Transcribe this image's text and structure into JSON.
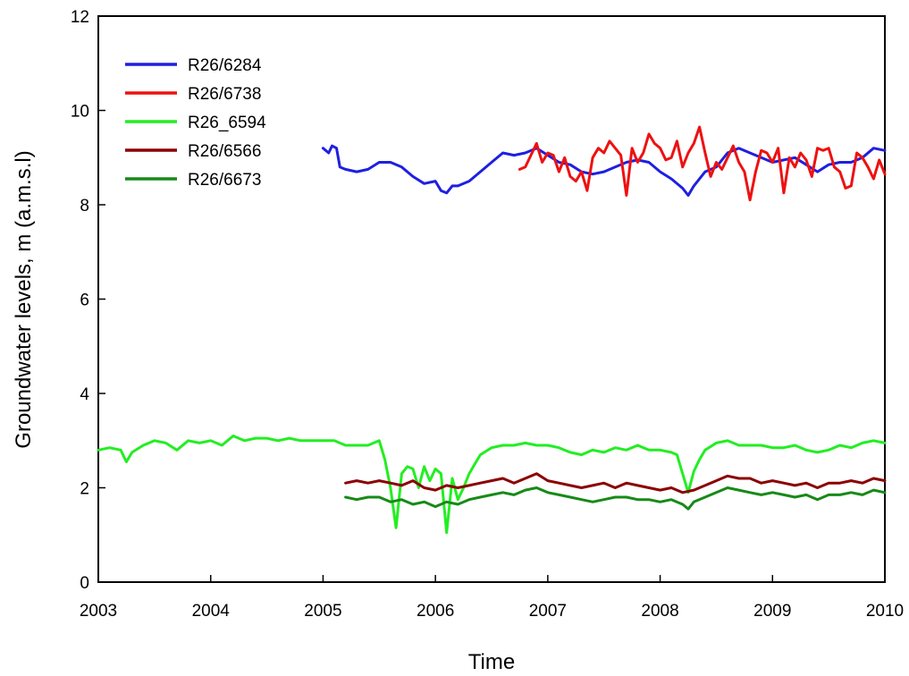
{
  "chart_data": {
    "type": "line",
    "title": "",
    "xlabel": "Time",
    "ylabel": "Groundwater levels, m (a.m.s.l)",
    "xlim": [
      2003,
      2010
    ],
    "ylim": [
      0,
      12
    ],
    "xticks": [
      2003,
      2004,
      2005,
      2006,
      2007,
      2008,
      2009,
      2010
    ],
    "xtick_labels": [
      "2003",
      "2004",
      "2005",
      "2006",
      "2007",
      "2008",
      "2009",
      "2010"
    ],
    "yticks": [
      0,
      2,
      4,
      6,
      8,
      10,
      12
    ],
    "ytick_labels": [
      "0",
      "2",
      "4",
      "6",
      "8",
      "10",
      "12"
    ],
    "grid": false,
    "legend_position": "top-left",
    "series": [
      {
        "name": "R26/6284",
        "color": "#1f1fe0",
        "x": [
          2005.0,
          2005.05,
          2005.08,
          2005.12,
          2005.15,
          2005.2,
          2005.3,
          2005.4,
          2005.5,
          2005.6,
          2005.7,
          2005.8,
          2005.9,
          2006.0,
          2006.05,
          2006.1,
          2006.15,
          2006.2,
          2006.3,
          2006.4,
          2006.5,
          2006.6,
          2006.7,
          2006.8,
          2006.9,
          2007.0,
          2007.1,
          2007.2,
          2007.3,
          2007.4,
          2007.5,
          2007.6,
          2007.7,
          2007.8,
          2007.9,
          2008.0,
          2008.1,
          2008.2,
          2008.25,
          2008.3,
          2008.4,
          2008.5,
          2008.6,
          2008.7,
          2008.8,
          2008.9,
          2009.0,
          2009.1,
          2009.2,
          2009.3,
          2009.4,
          2009.5,
          2009.6,
          2009.7,
          2009.8,
          2009.9,
          2010.0
        ],
        "y": [
          9.2,
          9.1,
          9.25,
          9.2,
          8.8,
          8.75,
          8.7,
          8.75,
          8.9,
          8.9,
          8.8,
          8.6,
          8.45,
          8.5,
          8.3,
          8.25,
          8.4,
          8.4,
          8.5,
          8.7,
          8.9,
          9.1,
          9.05,
          9.1,
          9.2,
          9.05,
          8.9,
          8.85,
          8.7,
          8.65,
          8.7,
          8.8,
          8.9,
          8.95,
          8.9,
          8.7,
          8.55,
          8.35,
          8.2,
          8.4,
          8.7,
          8.8,
          9.1,
          9.2,
          9.1,
          9.0,
          8.9,
          8.95,
          9.0,
          8.85,
          8.7,
          8.85,
          8.9,
          8.9,
          9.0,
          9.2,
          9.15
        ]
      },
      {
        "name": "R26/6738",
        "color": "#ee1111",
        "x": [
          2006.75,
          2006.8,
          2006.85,
          2006.9,
          2006.95,
          2007.0,
          2007.05,
          2007.1,
          2007.15,
          2007.2,
          2007.25,
          2007.3,
          2007.35,
          2007.4,
          2007.45,
          2007.5,
          2007.55,
          2007.6,
          2007.65,
          2007.7,
          2007.75,
          2007.8,
          2007.85,
          2007.9,
          2007.95,
          2008.0,
          2008.05,
          2008.1,
          2008.15,
          2008.2,
          2008.25,
          2008.3,
          2008.35,
          2008.4,
          2008.45,
          2008.5,
          2008.55,
          2008.6,
          2008.65,
          2008.7,
          2008.75,
          2008.8,
          2008.85,
          2008.9,
          2008.95,
          2009.0,
          2009.05,
          2009.1,
          2009.15,
          2009.2,
          2009.25,
          2009.3,
          2009.35,
          2009.4,
          2009.45,
          2009.5,
          2009.55,
          2009.6,
          2009.65,
          2009.7,
          2009.75,
          2009.8,
          2009.85,
          2009.9,
          2009.95,
          2010.0
        ],
        "y": [
          8.75,
          8.8,
          9.05,
          9.3,
          8.9,
          9.1,
          9.05,
          8.7,
          9.0,
          8.6,
          8.5,
          8.7,
          8.3,
          9.0,
          9.2,
          9.1,
          9.35,
          9.2,
          9.05,
          8.2,
          9.2,
          8.9,
          9.1,
          9.5,
          9.3,
          9.2,
          8.95,
          9.0,
          9.35,
          8.8,
          9.1,
          9.3,
          9.65,
          9.1,
          8.6,
          8.9,
          8.75,
          9.0,
          9.25,
          8.9,
          8.7,
          8.1,
          8.7,
          9.15,
          9.1,
          8.9,
          9.2,
          8.25,
          9.0,
          8.8,
          9.1,
          8.95,
          8.6,
          9.2,
          9.15,
          9.2,
          8.8,
          8.7,
          8.35,
          8.4,
          9.1,
          9.0,
          8.8,
          8.55,
          8.95,
          8.65
        ]
      },
      {
        "name": "R26_6594",
        "color": "#22ee22",
        "x": [
          2003.0,
          2003.1,
          2003.2,
          2003.25,
          2003.3,
          2003.4,
          2003.5,
          2003.6,
          2003.7,
          2003.8,
          2003.9,
          2004.0,
          2004.1,
          2004.2,
          2004.3,
          2004.4,
          2004.5,
          2004.6,
          2004.7,
          2004.8,
          2004.9,
          2005.0,
          2005.1,
          2005.2,
          2005.3,
          2005.4,
          2005.5,
          2005.55,
          2005.6,
          2005.65,
          2005.7,
          2005.75,
          2005.8,
          2005.85,
          2005.9,
          2005.95,
          2006.0,
          2006.05,
          2006.1,
          2006.15,
          2006.2,
          2006.25,
          2006.3,
          2006.35,
          2006.4,
          2006.5,
          2006.6,
          2006.7,
          2006.8,
          2006.9,
          2007.0,
          2007.1,
          2007.2,
          2007.3,
          2007.4,
          2007.5,
          2007.6,
          2007.7,
          2007.8,
          2007.9,
          2008.0,
          2008.1,
          2008.15,
          2008.2,
          2008.25,
          2008.3,
          2008.35,
          2008.4,
          2008.5,
          2008.6,
          2008.7,
          2008.8,
          2008.9,
          2009.0,
          2009.1,
          2009.2,
          2009.3,
          2009.4,
          2009.5,
          2009.6,
          2009.7,
          2009.8,
          2009.9,
          2010.0
        ],
        "y": [
          2.8,
          2.85,
          2.8,
          2.55,
          2.75,
          2.9,
          3.0,
          2.95,
          2.8,
          3.0,
          2.95,
          3.0,
          2.9,
          3.1,
          3.0,
          3.05,
          3.05,
          3.0,
          3.05,
          3.0,
          3.0,
          3.0,
          3.0,
          2.9,
          2.9,
          2.9,
          3.0,
          2.6,
          2.0,
          1.15,
          2.3,
          2.45,
          2.4,
          2.0,
          2.45,
          2.15,
          2.4,
          2.3,
          1.05,
          2.2,
          1.75,
          2.0,
          2.3,
          2.5,
          2.7,
          2.85,
          2.9,
          2.9,
          2.95,
          2.9,
          2.9,
          2.85,
          2.75,
          2.7,
          2.8,
          2.75,
          2.85,
          2.8,
          2.9,
          2.8,
          2.8,
          2.75,
          2.7,
          2.3,
          1.9,
          2.35,
          2.6,
          2.8,
          2.95,
          3.0,
          2.9,
          2.9,
          2.9,
          2.85,
          2.85,
          2.9,
          2.8,
          2.75,
          2.8,
          2.9,
          2.85,
          2.95,
          3.0,
          2.95
        ]
      },
      {
        "name": "R26/6566",
        "color": "#8b0000",
        "x": [
          2005.2,
          2005.3,
          2005.4,
          2005.5,
          2005.6,
          2005.7,
          2005.8,
          2005.9,
          2006.0,
          2006.1,
          2006.2,
          2006.3,
          2006.4,
          2006.5,
          2006.6,
          2006.7,
          2006.8,
          2006.9,
          2007.0,
          2007.1,
          2007.2,
          2007.3,
          2007.4,
          2007.5,
          2007.6,
          2007.7,
          2007.8,
          2007.9,
          2008.0,
          2008.1,
          2008.2,
          2008.3,
          2008.4,
          2008.5,
          2008.6,
          2008.7,
          2008.8,
          2008.9,
          2009.0,
          2009.1,
          2009.2,
          2009.3,
          2009.4,
          2009.5,
          2009.6,
          2009.7,
          2009.8,
          2009.9,
          2010.0
        ],
        "y": [
          2.1,
          2.15,
          2.1,
          2.15,
          2.1,
          2.05,
          2.15,
          2.0,
          1.95,
          2.05,
          2.0,
          2.05,
          2.1,
          2.15,
          2.2,
          2.1,
          2.2,
          2.3,
          2.15,
          2.1,
          2.05,
          2.0,
          2.05,
          2.1,
          2.0,
          2.1,
          2.05,
          2.0,
          1.95,
          2.0,
          1.9,
          1.95,
          2.05,
          2.15,
          2.25,
          2.2,
          2.2,
          2.1,
          2.15,
          2.1,
          2.05,
          2.1,
          2.0,
          2.1,
          2.1,
          2.15,
          2.1,
          2.2,
          2.15
        ]
      },
      {
        "name": "R26/6673",
        "color": "#178a17",
        "x": [
          2005.2,
          2005.3,
          2005.4,
          2005.5,
          2005.6,
          2005.7,
          2005.8,
          2005.9,
          2006.0,
          2006.1,
          2006.2,
          2006.3,
          2006.4,
          2006.5,
          2006.6,
          2006.7,
          2006.8,
          2006.9,
          2007.0,
          2007.1,
          2007.2,
          2007.3,
          2007.4,
          2007.5,
          2007.6,
          2007.7,
          2007.8,
          2007.9,
          2008.0,
          2008.1,
          2008.2,
          2008.25,
          2008.3,
          2008.4,
          2008.5,
          2008.6,
          2008.7,
          2008.8,
          2008.9,
          2009.0,
          2009.1,
          2009.2,
          2009.3,
          2009.4,
          2009.5,
          2009.6,
          2009.7,
          2009.8,
          2009.9,
          2010.0
        ],
        "y": [
          1.8,
          1.75,
          1.8,
          1.8,
          1.7,
          1.75,
          1.65,
          1.7,
          1.6,
          1.7,
          1.65,
          1.75,
          1.8,
          1.85,
          1.9,
          1.85,
          1.95,
          2.0,
          1.9,
          1.85,
          1.8,
          1.75,
          1.7,
          1.75,
          1.8,
          1.8,
          1.75,
          1.75,
          1.7,
          1.75,
          1.65,
          1.55,
          1.7,
          1.8,
          1.9,
          2.0,
          1.95,
          1.9,
          1.85,
          1.9,
          1.85,
          1.8,
          1.85,
          1.75,
          1.85,
          1.85,
          1.9,
          1.85,
          1.95,
          1.9
        ]
      }
    ]
  }
}
